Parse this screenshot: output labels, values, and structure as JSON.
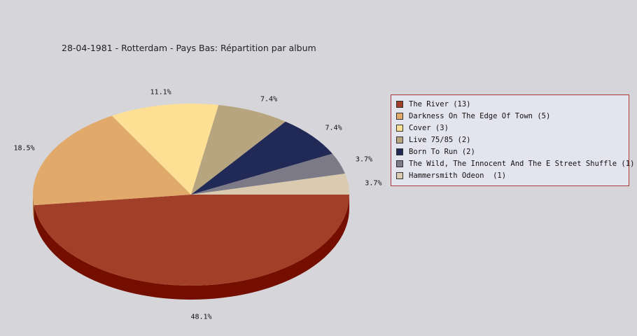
{
  "chart_data": {
    "type": "pie",
    "title": "28-04-1981 - Rotterdam - Pays Bas:  Répartition par album",
    "slices": [
      {
        "label": "The River (13)",
        "value": 13,
        "percent_label": "48.1%",
        "color": "#a13f28",
        "side_color": "#740f00"
      },
      {
        "label": "Darkness On The Edge Of Town (5)",
        "value": 5,
        "percent_label": "18.5%",
        "color": "#e1aa6b",
        "side_color": "#b07a40"
      },
      {
        "label": "Cover (3)",
        "value": 3,
        "percent_label": "11.1%",
        "color": "#fde093",
        "side_color": "#c8ad60"
      },
      {
        "label": "Live 75/85 (2)",
        "value": 2,
        "percent_label": "7.4%",
        "color": "#b7a57f",
        "side_color": "#8a7a58"
      },
      {
        "label": "Born To Run (2)",
        "value": 2,
        "percent_label": "7.4%",
        "color": "#212a56",
        "side_color": "#10163a"
      },
      {
        "label": "The Wild, The Innocent And The E Street Shuffle (1)",
        "value": 1,
        "percent_label": "3.7%",
        "color": "#7b7a86",
        "side_color": "#55545e"
      },
      {
        "label": "Hammersmith Odeon  (1)",
        "value": 1,
        "percent_label": "3.7%",
        "color": "#dacbb0",
        "side_color": "#b0a388"
      }
    ],
    "legend_position": "right"
  }
}
